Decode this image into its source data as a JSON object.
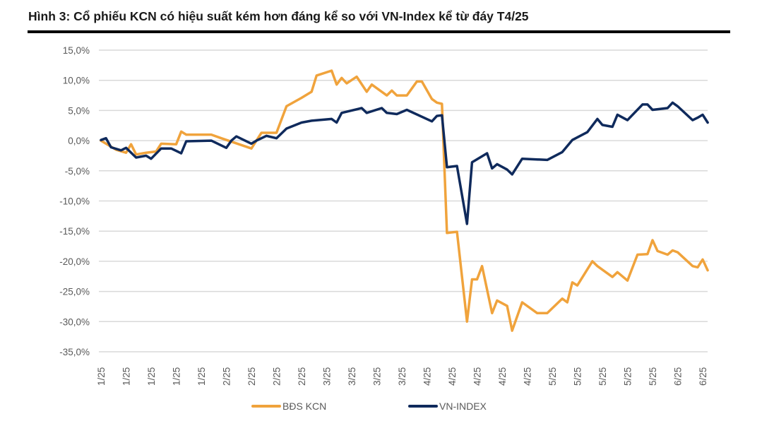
{
  "title": "Hình 3: Cổ phiếu KCN có hiệu suất kém hơn đáng kể so với VN-Index kể từ đáy T4/25",
  "chart_data": {
    "type": "line",
    "title": "Hình 3: Cổ phiếu KCN có hiệu suất kém hơn đáng kể so với VN-Index kể từ đáy T4/25",
    "xlabel": "",
    "ylabel": "",
    "ylim": [
      -35,
      15
    ],
    "y_ticks": [
      15,
      10,
      5,
      0,
      -5,
      -10,
      -15,
      -20,
      -25,
      -30,
      -35
    ],
    "y_tick_labels": [
      "15,0%",
      "10,0%",
      "5,0%",
      "0,0%",
      "-5,0%",
      "-10,0%",
      "-15,0%",
      "-20,0%",
      "-25,0%",
      "-30,0%",
      "-35,0%"
    ],
    "x_tick_labels": [
      "1/25",
      "1/25",
      "1/25",
      "1/25",
      "1/25",
      "2/25",
      "2/25",
      "2/25",
      "2/25",
      "3/25",
      "3/25",
      "3/25",
      "3/25",
      "4/25",
      "4/25",
      "4/25",
      "4/25",
      "4/25",
      "5/25",
      "5/25",
      "5/25",
      "5/25",
      "5/25",
      "6/25",
      "6/25"
    ],
    "x_tick_every": 5,
    "grid": true,
    "legend_position": "bottom",
    "series": [
      {
        "name": "BĐS KCN",
        "color": "#f0a33c",
        "points": [
          [
            0,
            0
          ],
          [
            2,
            -1
          ],
          [
            3,
            -1.5
          ],
          [
            5,
            -2
          ],
          [
            6,
            -0.6
          ],
          [
            7,
            -2.3
          ],
          [
            9,
            -2.0
          ],
          [
            11,
            -1.8
          ],
          [
            12,
            -0.5
          ],
          [
            15,
            -0.6
          ],
          [
            16,
            1.5
          ],
          [
            17,
            1.0
          ],
          [
            22,
            1.0
          ],
          [
            24,
            0.4
          ],
          [
            30,
            -1.3
          ],
          [
            32,
            1.3
          ],
          [
            35,
            1.3
          ],
          [
            37,
            5.7
          ],
          [
            40,
            7.1
          ],
          [
            42,
            8.1
          ],
          [
            43,
            10.8
          ],
          [
            46,
            11.6
          ],
          [
            47,
            9.3
          ],
          [
            48,
            10.4
          ],
          [
            49,
            9.5
          ],
          [
            51,
            10.6
          ],
          [
            53,
            8.1
          ],
          [
            54,
            9.3
          ],
          [
            57,
            7.5
          ],
          [
            58,
            8.3
          ],
          [
            59,
            7.5
          ],
          [
            61,
            7.5
          ],
          [
            63,
            9.8
          ],
          [
            64,
            9.8
          ],
          [
            66,
            6.9
          ],
          [
            67,
            6.3
          ],
          [
            68,
            6.1
          ],
          [
            69,
            -15.3
          ],
          [
            71,
            -15.1
          ],
          [
            73,
            -30
          ],
          [
            74,
            -23
          ],
          [
            75,
            -23
          ],
          [
            76,
            -20.8
          ],
          [
            78,
            -28.6
          ],
          [
            79,
            -26.5
          ],
          [
            81,
            -27.4
          ],
          [
            82,
            -31.5
          ],
          [
            84,
            -26.8
          ],
          [
            87,
            -28.6
          ],
          [
            89,
            -28.6
          ],
          [
            92,
            -26.2
          ],
          [
            93,
            -26.8
          ],
          [
            94,
            -23.5
          ],
          [
            95,
            -24
          ],
          [
            98,
            -20
          ],
          [
            99,
            -20.8
          ],
          [
            102,
            -22.6
          ],
          [
            103,
            -21.8
          ],
          [
            105,
            -23.2
          ],
          [
            107,
            -18.9
          ],
          [
            109,
            -18.8
          ],
          [
            110,
            -16.5
          ],
          [
            111,
            -18.3
          ],
          [
            113,
            -18.9
          ],
          [
            114,
            -18.2
          ],
          [
            115,
            -18.5
          ],
          [
            118,
            -20.8
          ],
          [
            119,
            -21
          ],
          [
            120,
            -19.7
          ],
          [
            121,
            -21.5
          ]
        ]
      },
      {
        "name": "VN-INDEX",
        "color": "#0f2a5c",
        "points": [
          [
            0,
            0.1
          ],
          [
            1,
            0.4
          ],
          [
            2,
            -1.1
          ],
          [
            4,
            -1.6
          ],
          [
            5,
            -1.2
          ],
          [
            7,
            -2.8
          ],
          [
            9,
            -2.5
          ],
          [
            10,
            -3.0
          ],
          [
            12,
            -1.3
          ],
          [
            14,
            -1.3
          ],
          [
            16,
            -2.1
          ],
          [
            17,
            -0.1
          ],
          [
            22,
            0
          ],
          [
            25,
            -1.2
          ],
          [
            26,
            0
          ],
          [
            27,
            0.7
          ],
          [
            30,
            -0.5
          ],
          [
            31,
            0
          ],
          [
            33,
            0.8
          ],
          [
            35,
            0.4
          ],
          [
            37,
            2.0
          ],
          [
            40,
            3.0
          ],
          [
            42,
            3.3
          ],
          [
            46,
            3.6
          ],
          [
            47,
            3.0
          ],
          [
            48,
            4.6
          ],
          [
            52,
            5.4
          ],
          [
            53,
            4.6
          ],
          [
            56,
            5.4
          ],
          [
            57,
            4.6
          ],
          [
            59,
            4.4
          ],
          [
            61,
            5.1
          ],
          [
            66,
            3.2
          ],
          [
            67,
            4.1
          ],
          [
            68,
            4.2
          ],
          [
            69,
            -4.4
          ],
          [
            71,
            -4.2
          ],
          [
            73,
            -13.8
          ],
          [
            74,
            -3.6
          ],
          [
            77,
            -2.1
          ],
          [
            78,
            -4.6
          ],
          [
            79,
            -3.9
          ],
          [
            81,
            -4.8
          ],
          [
            82,
            -5.6
          ],
          [
            84,
            -3.0
          ],
          [
            89,
            -3.2
          ],
          [
            92,
            -1.9
          ],
          [
            94,
            0.1
          ],
          [
            97,
            1.4
          ],
          [
            99,
            3.6
          ],
          [
            100,
            2.6
          ],
          [
            102,
            2.3
          ],
          [
            103,
            4.3
          ],
          [
            105,
            3.4
          ],
          [
            108,
            6.0
          ],
          [
            109,
            6.0
          ],
          [
            110,
            5.1
          ],
          [
            113,
            5.4
          ],
          [
            114,
            6.3
          ],
          [
            115,
            5.7
          ],
          [
            118,
            3.4
          ],
          [
            119,
            3.8
          ],
          [
            120,
            4.3
          ],
          [
            121,
            3.0
          ]
        ]
      }
    ]
  }
}
